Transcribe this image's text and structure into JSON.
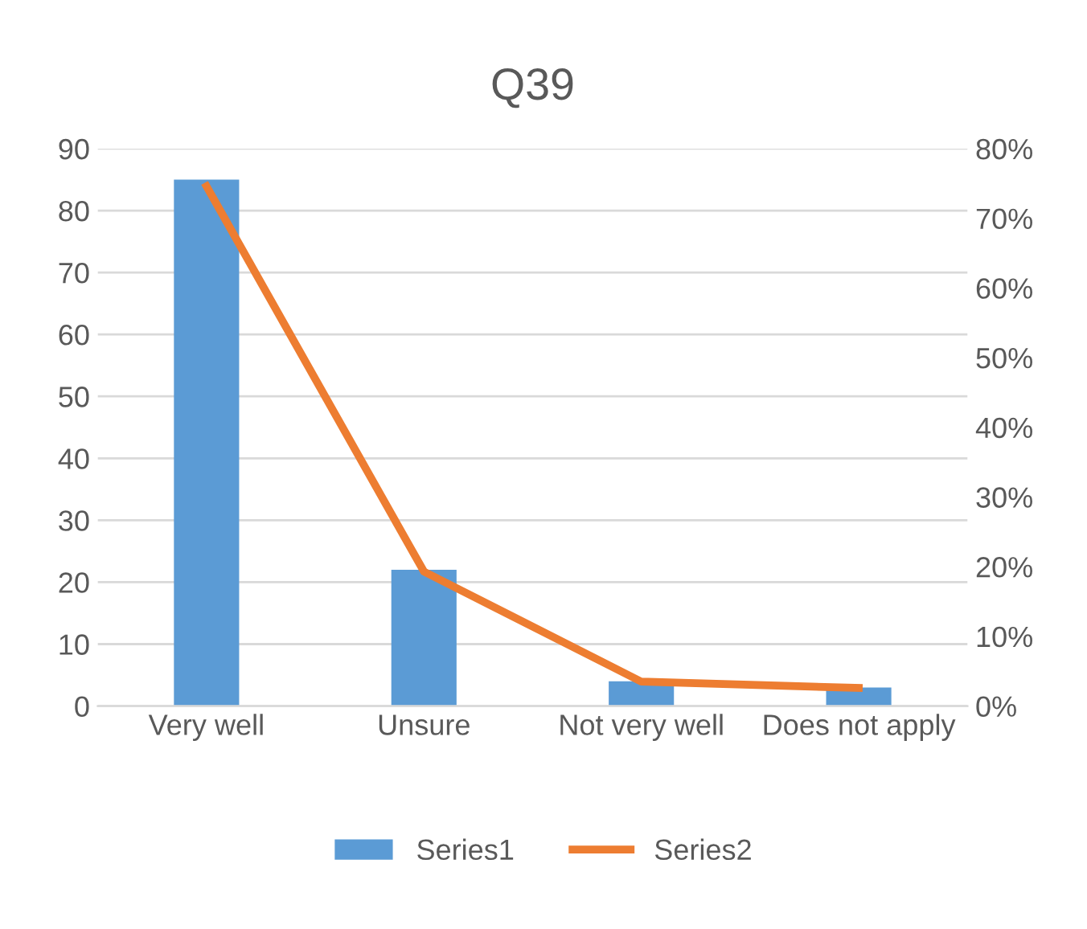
{
  "chart_data": {
    "type": "bar",
    "title": "Q39",
    "categories": [
      "Very well",
      "Unsure",
      "Not very well",
      "Does not apply"
    ],
    "series": [
      {
        "name": "Series1",
        "color": "#5b9bd5",
        "values": [
          85,
          22,
          4,
          3
        ]
      },
      {
        "name": "Series2",
        "type": "line",
        "axis": "y2",
        "color": "#ed7d31",
        "values": [
          74.6,
          19.3,
          3.5,
          2.6
        ]
      }
    ],
    "ylim": [
      0,
      90
    ],
    "yticks": [
      0,
      10,
      20,
      30,
      40,
      50,
      60,
      70,
      80,
      90
    ],
    "y2lim": [
      0,
      80
    ],
    "y2ticks": [
      {
        "value": 0,
        "label": "0%"
      },
      {
        "value": 10,
        "label": "10%"
      },
      {
        "value": 20,
        "label": "20%"
      },
      {
        "value": 30,
        "label": "30%"
      },
      {
        "value": 40,
        "label": "40%"
      },
      {
        "value": 50,
        "label": "50%"
      },
      {
        "value": 60,
        "label": "60%"
      },
      {
        "value": 70,
        "label": "70%"
      },
      {
        "value": 80,
        "label": "80%"
      }
    ],
    "grid": "y",
    "legend": "bottom",
    "marker": "none",
    "line_style": "solid"
  }
}
